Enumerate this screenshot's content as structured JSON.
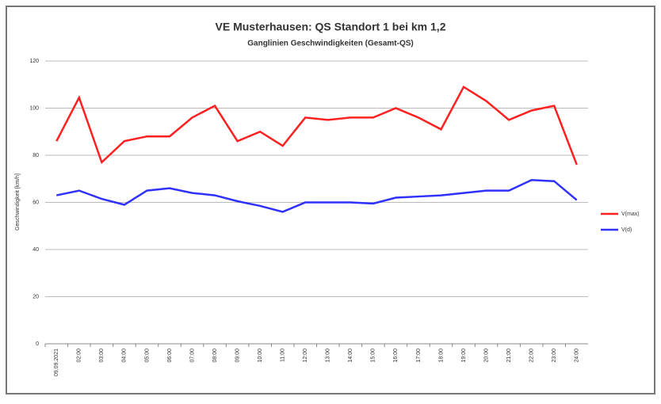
{
  "chart_data": {
    "type": "line",
    "title": "VE Musterhausen: QS Standort 1 bei km 1,2",
    "subtitle": "Ganglinien Geschwindigkeiten (Gesamt-QS)",
    "y_label": "Geschwindigkeit [km/h]",
    "categories": [
      "09.09.2021",
      "02:00",
      "03:00",
      "04:00",
      "05:00",
      "06:00",
      "07:00",
      "08:00",
      "09:00",
      "10:00",
      "11:00",
      "12:00",
      "13:00",
      "14:00",
      "15:00",
      "16:00",
      "17:00",
      "18:00",
      "19:00",
      "20:00",
      "21:00",
      "22:00",
      "23:00",
      "24:00"
    ],
    "series": [
      {
        "name": "V(max)",
        "color": "#ff2020",
        "values": [
          86,
          104.5,
          77,
          86,
          88,
          88,
          96,
          101,
          86,
          90,
          84,
          96,
          95,
          96,
          96,
          100,
          96,
          91,
          109,
          103,
          95,
          99,
          101,
          76
        ]
      },
      {
        "name": "V(d)",
        "color": "#3030ff",
        "values": [
          63,
          65,
          61.5,
          59,
          65,
          66,
          64,
          63,
          60.5,
          58.5,
          56,
          60,
          60,
          60,
          59.5,
          62,
          62.5,
          63,
          64,
          65,
          65,
          69.5,
          69,
          61
        ]
      }
    ],
    "ylim": [
      0,
      120
    ],
    "yticks": [
      0,
      20,
      40,
      60,
      80,
      100,
      120
    ],
    "grid": true,
    "legend": "right"
  }
}
